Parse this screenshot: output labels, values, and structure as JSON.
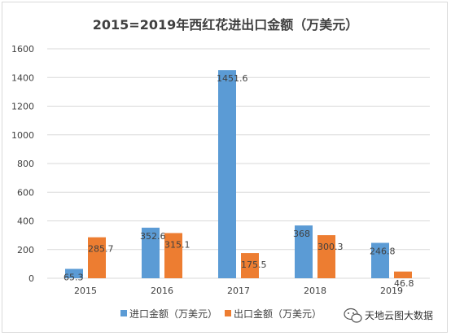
{
  "chart_data": {
    "type": "bar",
    "title": "2015=2019年西红花进出口金额（万美元）",
    "categories": [
      "2015",
      "2016",
      "2017",
      "2018",
      "2019"
    ],
    "series": [
      {
        "name": "进口金额（万美元）",
        "color": "#5b9bd5",
        "values": [
          65.3,
          352.6,
          1451.6,
          368,
          246.8
        ]
      },
      {
        "name": "出口金额（万美元）",
        "color": "#ed7d31",
        "values": [
          285.7,
          315.1,
          175.5,
          300.3,
          46.8
        ]
      }
    ],
    "data_labels": [
      [
        "65.3",
        "352.6",
        "1451.6",
        "368",
        "246.8"
      ],
      [
        "285.7",
        "315.1",
        "175.5",
        "300.3",
        "46.8"
      ]
    ],
    "ylim": [
      0,
      1600
    ],
    "yticks": [
      0,
      200,
      400,
      600,
      800,
      1000,
      1200,
      1400,
      1600
    ],
    "grid": true,
    "legend": "bottom",
    "xlabel": "",
    "ylabel": ""
  },
  "watermark": {
    "text": "天地云图大数据",
    "icon": "wechat-icon"
  }
}
